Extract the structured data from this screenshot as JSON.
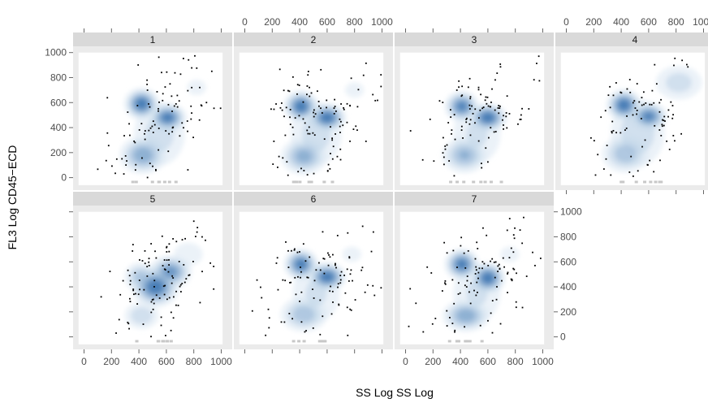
{
  "chart_data": {
    "type": "scatter",
    "style": "smoothed density scatter with outlier points, faceted lattice",
    "xlabel": "SS Log SS Log",
    "ylabel": "FL3 Log CD45−ECD",
    "xlim": [
      -80,
      1080
    ],
    "ylim": [
      -100,
      1050
    ],
    "x_ticks": [
      0,
      200,
      400,
      600,
      800,
      1000
    ],
    "x_tick_labels": [
      "0",
      "200",
      "400",
      "600",
      "800",
      "1000"
    ],
    "y_ticks": [
      0,
      200,
      400,
      600,
      800,
      1000
    ],
    "y_tick_labels": [
      "0",
      "200",
      "400",
      "600",
      "800",
      "1000"
    ],
    "colors": {
      "density_low": "#f7fbff",
      "density_high": "#08519c",
      "points": "#000000",
      "strip": "#d9d9d9"
    },
    "panels": [
      {
        "label": "1",
        "clusters": [
          {
            "x": 420,
            "y": 590,
            "sx": 55,
            "sy": 55,
            "w": 1.0
          },
          {
            "x": 610,
            "y": 480,
            "sx": 60,
            "sy": 50,
            "w": 0.95
          },
          {
            "x": 430,
            "y": 180,
            "sx": 80,
            "sy": 70,
            "w": 0.7
          },
          {
            "x": 550,
            "y": 350,
            "sx": 110,
            "sy": 150,
            "w": 0.35
          },
          {
            "x": 820,
            "y": 720,
            "sx": 90,
            "sy": 80,
            "w": 0.15
          }
        ]
      },
      {
        "label": "2",
        "clusters": [
          {
            "x": 410,
            "y": 570,
            "sx": 55,
            "sy": 55,
            "w": 1.0
          },
          {
            "x": 600,
            "y": 480,
            "sx": 60,
            "sy": 50,
            "w": 1.0
          },
          {
            "x": 430,
            "y": 170,
            "sx": 80,
            "sy": 70,
            "w": 0.65
          },
          {
            "x": 520,
            "y": 350,
            "sx": 110,
            "sy": 150,
            "w": 0.35
          },
          {
            "x": 800,
            "y": 700,
            "sx": 90,
            "sy": 80,
            "w": 0.15
          }
        ]
      },
      {
        "label": "3",
        "clusters": [
          {
            "x": 410,
            "y": 570,
            "sx": 55,
            "sy": 55,
            "w": 0.9
          },
          {
            "x": 600,
            "y": 480,
            "sx": 60,
            "sy": 50,
            "w": 1.0
          },
          {
            "x": 430,
            "y": 180,
            "sx": 80,
            "sy": 70,
            "w": 0.6
          },
          {
            "x": 520,
            "y": 350,
            "sx": 110,
            "sy": 150,
            "w": 0.3
          },
          {
            "x": 780,
            "y": 680,
            "sx": 90,
            "sy": 80,
            "w": 0.12
          }
        ]
      },
      {
        "label": "4",
        "clusters": [
          {
            "x": 420,
            "y": 580,
            "sx": 55,
            "sy": 55,
            "w": 1.0
          },
          {
            "x": 600,
            "y": 490,
            "sx": 60,
            "sy": 50,
            "w": 0.9
          },
          {
            "x": 430,
            "y": 190,
            "sx": 85,
            "sy": 75,
            "w": 0.55
          },
          {
            "x": 520,
            "y": 360,
            "sx": 110,
            "sy": 150,
            "w": 0.4
          },
          {
            "x": 820,
            "y": 760,
            "sx": 100,
            "sy": 80,
            "w": 0.35
          }
        ]
      },
      {
        "label": "5",
        "clusters": [
          {
            "x": 520,
            "y": 400,
            "sx": 75,
            "sy": 70,
            "w": 1.0
          },
          {
            "x": 630,
            "y": 520,
            "sx": 70,
            "sy": 60,
            "w": 0.8
          },
          {
            "x": 410,
            "y": 480,
            "sx": 60,
            "sy": 60,
            "w": 0.5
          },
          {
            "x": 420,
            "y": 170,
            "sx": 70,
            "sy": 60,
            "w": 0.4
          },
          {
            "x": 760,
            "y": 660,
            "sx": 90,
            "sy": 80,
            "w": 0.2
          }
        ]
      },
      {
        "label": "6",
        "clusters": [
          {
            "x": 410,
            "y": 580,
            "sx": 55,
            "sy": 55,
            "w": 0.95
          },
          {
            "x": 600,
            "y": 480,
            "sx": 60,
            "sy": 50,
            "w": 1.0
          },
          {
            "x": 430,
            "y": 180,
            "sx": 85,
            "sy": 70,
            "w": 0.55
          },
          {
            "x": 520,
            "y": 350,
            "sx": 110,
            "sy": 150,
            "w": 0.3
          },
          {
            "x": 780,
            "y": 660,
            "sx": 90,
            "sy": 80,
            "w": 0.15
          }
        ]
      },
      {
        "label": "7",
        "clusters": [
          {
            "x": 410,
            "y": 580,
            "sx": 55,
            "sy": 55,
            "w": 0.95
          },
          {
            "x": 600,
            "y": 470,
            "sx": 55,
            "sy": 55,
            "w": 1.0
          },
          {
            "x": 440,
            "y": 170,
            "sx": 80,
            "sy": 60,
            "w": 0.7
          },
          {
            "x": 520,
            "y": 350,
            "sx": 110,
            "sy": 150,
            "w": 0.3
          },
          {
            "x": 760,
            "y": 660,
            "sx": 90,
            "sy": 80,
            "w": 0.15
          }
        ]
      }
    ]
  }
}
